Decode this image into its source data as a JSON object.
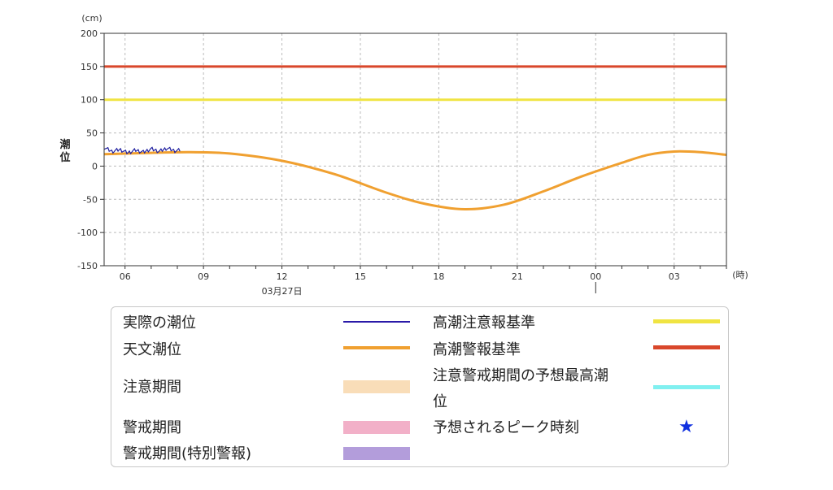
{
  "chart_data": {
    "type": "line",
    "y_unit": "(cm)",
    "x_unit": "(時)",
    "ylabel": "潮\n位",
    "ylim": [
      -150,
      200
    ],
    "yticks": [
      200,
      150,
      100,
      50,
      0,
      -50,
      -100,
      -150
    ],
    "x_range_hours": [
      5.2,
      29.0
    ],
    "xticks": [
      {
        "hour": 6,
        "label": "06"
      },
      {
        "hour": 9,
        "label": "09"
      },
      {
        "hour": 12,
        "label": "12"
      },
      {
        "hour": 15,
        "label": "15"
      },
      {
        "hour": 18,
        "label": "18"
      },
      {
        "hour": 21,
        "label": "21"
      },
      {
        "hour": 24,
        "label": "00"
      },
      {
        "hour": 27,
        "label": "03"
      }
    ],
    "date_label": "03月27日",
    "grid": true,
    "series": [
      {
        "name": "高潮注意報基準",
        "color": "#f0e442",
        "x": [
          5.2,
          29.0
        ],
        "y": [
          100,
          100
        ]
      },
      {
        "name": "高潮警報基準",
        "color": "#d9472b",
        "x": [
          5.2,
          29.0
        ],
        "y": [
          150,
          150
        ]
      },
      {
        "name": "天文潮位",
        "color": "#f0a030",
        "x": [
          5.2,
          7,
          8.5,
          10,
          12,
          14,
          16,
          17.5,
          19,
          20.5,
          22,
          23.5,
          25,
          26,
          27,
          28,
          29
        ],
        "y": [
          18,
          20,
          21,
          19,
          8,
          -12,
          -40,
          -57,
          -65,
          -58,
          -38,
          -15,
          5,
          17,
          22,
          21,
          17
        ]
      },
      {
        "name": "実際の潮位",
        "color": "#2020a0",
        "x": [
          5.2,
          5.5,
          5.8,
          6.1,
          6.4,
          6.7,
          7.0,
          7.3,
          7.6,
          7.9,
          8.1
        ],
        "y": [
          28,
          22,
          25,
          20,
          24,
          21,
          26,
          22,
          27,
          23,
          24
        ]
      }
    ]
  },
  "legend": {
    "actual_tide": {
      "label": "実際の潮位",
      "color": "#2a1aa8"
    },
    "astronomical_tide": {
      "label": "天文潮位",
      "color": "#f0a030"
    },
    "caution_period": {
      "label": "注意期間",
      "color": "#f9ddb8"
    },
    "warning_period": {
      "label": "警戒期間",
      "color": "#f2b0c8"
    },
    "special_warning_period": {
      "label": "警戒期間(特別警報)",
      "color": "#b39ddb"
    },
    "advisory_criterion": {
      "label": "高潮注意報基準",
      "color": "#f0e442"
    },
    "warning_criterion": {
      "label": "高潮警報基準",
      "color": "#d9472b"
    },
    "forecast_max_tide": {
      "label_line1": "注意警戒期間の予想最高潮",
      "label_line2": "位",
      "color": "#80f0f0"
    },
    "forecast_peak_time": {
      "label": "予想されるピーク時刻",
      "star": "★",
      "color": "#1030e0"
    }
  }
}
